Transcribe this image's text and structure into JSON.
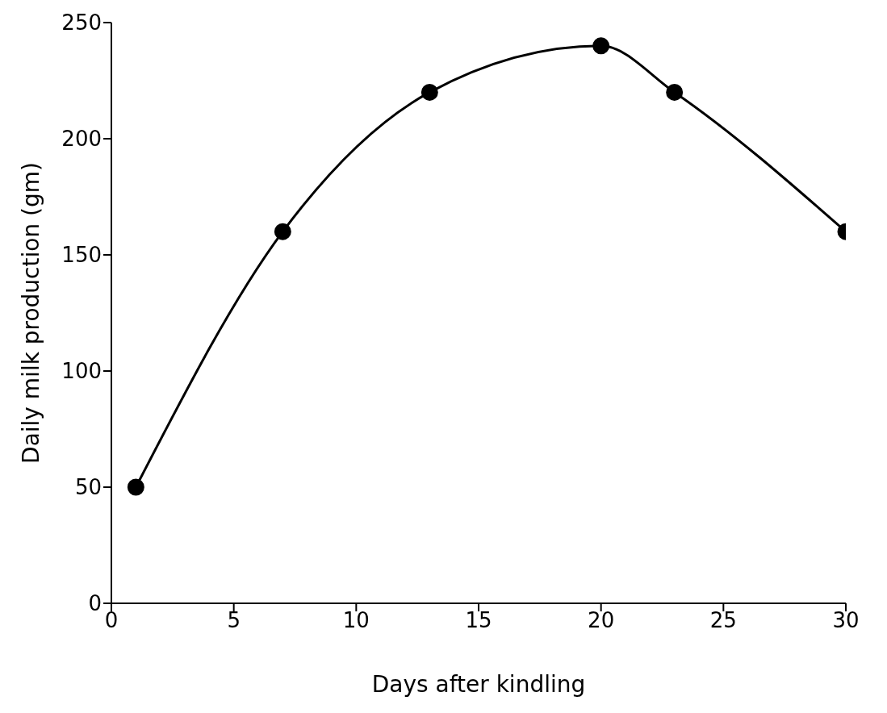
{
  "chart_data": {
    "type": "line",
    "xlabel": "Days after kindling",
    "ylabel": "Daily milk production (gm)",
    "x": [
      1,
      7,
      13,
      20,
      23,
      30
    ],
    "series": [
      {
        "color": "#000000",
        "values": [
          50,
          160,
          220,
          240,
          220,
          160
        ]
      }
    ],
    "xlim": [
      0,
      30
    ],
    "xticks": [
      0,
      5,
      10,
      15,
      20,
      25,
      30
    ],
    "ylim": [
      0,
      250
    ],
    "yticks": [
      0,
      50,
      100,
      150,
      200,
      250
    ],
    "grid": false,
    "legend": false,
    "marker": "circle",
    "line_style": "solid"
  }
}
